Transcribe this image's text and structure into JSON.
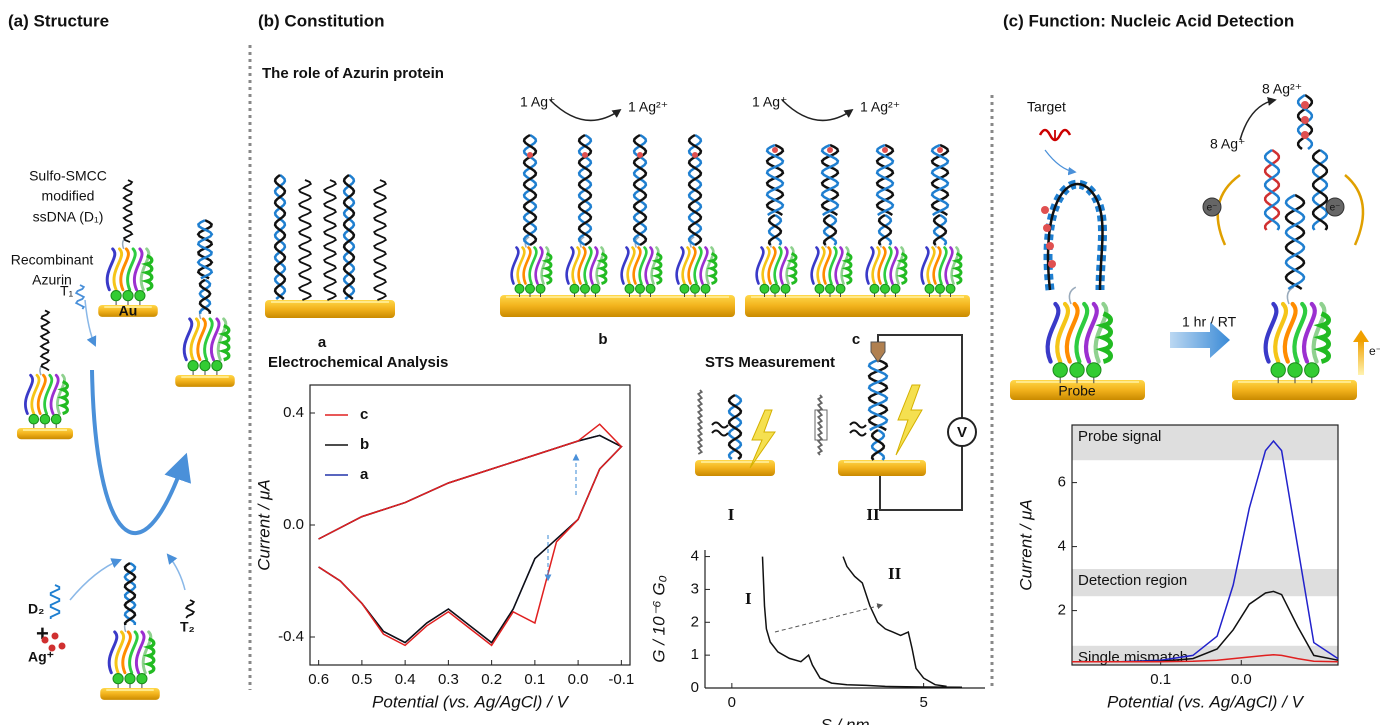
{
  "panel_a": {
    "title": "(a) Structure",
    "d1_label": [
      "Sulfo-SMCC",
      "modified",
      "ssDNA (D₁)"
    ],
    "azurin_label": [
      "Recombinant",
      "Azurin"
    ],
    "substrate": "Au",
    "t1": "T₁",
    "d2": "D₂",
    "plus": "+",
    "ag": "Ag⁺",
    "t2": "T₂"
  },
  "panel_b": {
    "title": "(b) Constitution",
    "subtitle": "The role of Azurin protein",
    "reactions": [
      {
        "from": "1 Ag⁺",
        "to": "1 Ag²⁺"
      },
      {
        "from": "1 Ag⁺",
        "to": "1 Ag²⁺"
      }
    ],
    "labels": [
      "a",
      "b",
      "c"
    ],
    "echem_title": "Electrochemical Analysis",
    "sts_title": "STS Measurement",
    "voltmeter": "V",
    "sts_labels": [
      "I",
      "II"
    ]
  },
  "panel_c": {
    "title": "(c) Function: Nucleic Acid Detection",
    "target": "Target",
    "product": "8 Ag²⁺",
    "reactant": "8 Ag⁺",
    "condition": "1 hr / RT",
    "probe": "Probe",
    "electron": "e⁻"
  },
  "chart_data": [
    {
      "type": "line",
      "x_label": "Potential (vs. Ag/AgCl) / V",
      "y_label": "Current / μA",
      "xlim": [
        0.62,
        -0.12
      ],
      "ylim": [
        -0.5,
        0.5
      ],
      "xticks": [
        0.6,
        0.5,
        0.4,
        0.3,
        0.2,
        0.1,
        {
          "value": 0,
          "label": "0.0"
        },
        -0.1
      ],
      "yticks": [
        -0.4,
        {
          "value": 0,
          "label": "0.0"
        },
        0.4
      ],
      "x": [
        0.6,
        0.55,
        0.5,
        0.45,
        0.4,
        0.35,
        0.3,
        0.25,
        0.2,
        0.15,
        0.1,
        0.05,
        0.0,
        -0.05,
        -0.1,
        -0.05,
        0.0,
        0.1,
        0.2,
        0.3,
        0.4,
        0.5,
        0.6
      ],
      "series": [
        {
          "name": "a",
          "color": "#2233aa",
          "values": [
            -0.15,
            -0.2,
            -0.28,
            -0.38,
            -0.42,
            -0.35,
            -0.3,
            -0.36,
            -0.42,
            -0.3,
            -0.12,
            -0.05,
            0.02,
            0.2,
            0.28,
            0.32,
            0.3,
            0.25,
            0.2,
            0.15,
            0.08,
            0.03,
            -0.05
          ]
        },
        {
          "name": "b",
          "color": "#111111",
          "values": [
            -0.15,
            -0.2,
            -0.28,
            -0.38,
            -0.42,
            -0.35,
            -0.3,
            -0.36,
            -0.42,
            -0.3,
            -0.12,
            -0.05,
            0.02,
            0.2,
            0.28,
            0.32,
            0.3,
            0.25,
            0.2,
            0.15,
            0.08,
            0.03,
            -0.05
          ]
        },
        {
          "name": "c",
          "color": "#e02020",
          "values": [
            -0.15,
            -0.2,
            -0.28,
            -0.39,
            -0.43,
            -0.36,
            -0.31,
            -0.37,
            -0.43,
            -0.31,
            -0.35,
            -0.06,
            0.02,
            0.2,
            0.28,
            0.36,
            0.3,
            0.25,
            0.2,
            0.15,
            0.08,
            0.03,
            -0.05
          ]
        }
      ]
    },
    {
      "type": "line",
      "x_label": "S / nm",
      "y_label": "G / 10⁻⁶ G₀",
      "xlim": [
        -0.7,
        6.6
      ],
      "ylim": [
        0,
        4.2
      ],
      "xticks": [
        0,
        5
      ],
      "yticks": [
        0,
        1,
        2,
        3,
        4
      ],
      "series": [
        {
          "name": "I",
          "color": "#111111",
          "x": [
            0.8,
            0.85,
            0.9,
            1,
            1.2,
            1.5,
            1.8,
            2,
            2.1,
            2.3,
            2.6,
            3,
            3.5,
            4,
            5,
            6
          ],
          "values": [
            4,
            2.5,
            1.8,
            1.4,
            1.1,
            0.9,
            0.8,
            1,
            0.7,
            0.3,
            0.15,
            0.1,
            0.08,
            0.05,
            0.03,
            0.02
          ]
        },
        {
          "name": "II",
          "color": "#111111",
          "x": [
            2.9,
            3,
            3.2,
            3.4,
            3.6,
            3.8,
            4,
            4.2,
            4.4,
            4.6,
            4.7,
            4.8,
            5,
            5.3,
            5.6
          ],
          "values": [
            4,
            3.7,
            3.4,
            3.2,
            2.5,
            2.0,
            1.8,
            1.7,
            1.6,
            1.7,
            1.2,
            0.6,
            0.3,
            0.1,
            0.05
          ]
        }
      ]
    },
    {
      "type": "line",
      "x_label": "Potential (vs. Ag/AgCl) / V",
      "y_label": "Current / μA",
      "xlim": [
        0.21,
        -0.12
      ],
      "ylim": [
        0.3,
        7.8
      ],
      "xticks": [
        0.1,
        {
          "value": 0,
          "label": "0.0"
        }
      ],
      "yticks": [
        2,
        4,
        6
      ],
      "bands": [
        {
          "label": "Probe signal",
          "range": [
            6.7,
            7.8
          ]
        },
        {
          "label": "Detection region",
          "range": [
            2.45,
            3.3
          ]
        },
        {
          "label": "Single mismatch",
          "range": [
            0.3,
            0.9
          ]
        }
      ],
      "x": [
        0.21,
        0.15,
        0.1,
        0.06,
        0.03,
        0.01,
        -0.01,
        -0.03,
        -0.04,
        -0.05,
        -0.07,
        -0.09,
        -0.12
      ],
      "series": [
        {
          "color": "#2222cc",
          "values": [
            0.4,
            0.4,
            0.45,
            0.6,
            1.2,
            2.8,
            5.2,
            7,
            7.3,
            7,
            4,
            1,
            0.5
          ]
        },
        {
          "color": "#111111",
          "values": [
            0.4,
            0.4,
            0.42,
            0.5,
            0.8,
            1.4,
            2.2,
            2.55,
            2.6,
            2.5,
            1.5,
            0.6,
            0.45
          ]
        },
        {
          "color": "#e02020",
          "values": [
            0.4,
            0.4,
            0.4,
            0.42,
            0.45,
            0.5,
            0.55,
            0.6,
            0.62,
            0.6,
            0.5,
            0.42,
            0.4
          ]
        }
      ]
    }
  ]
}
